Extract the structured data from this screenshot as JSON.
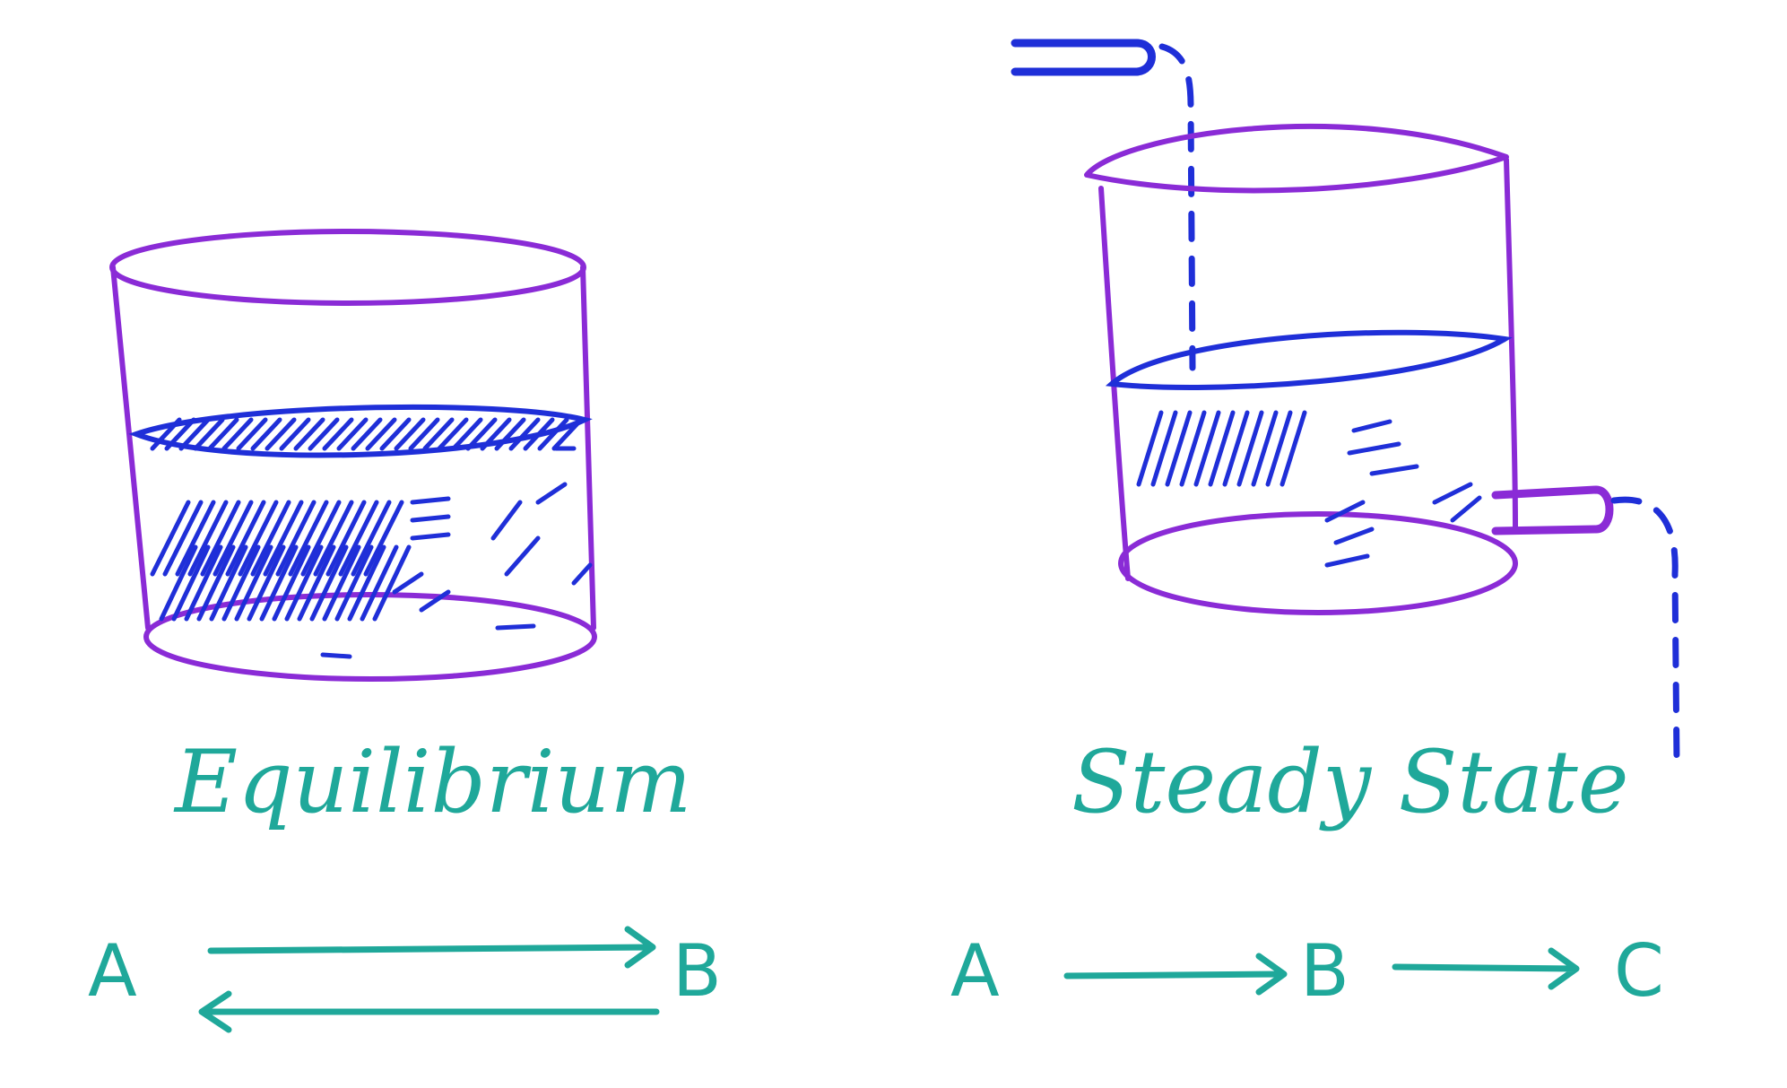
{
  "panels": [
    {
      "id": "equilibrium",
      "caption": "Equilibrium",
      "species": [
        "A",
        "B"
      ]
    },
    {
      "id": "steady-state",
      "caption": "Steady State",
      "species": [
        "A",
        "B",
        "C"
      ]
    }
  ],
  "colors": {
    "vessel": "#8a2bd6",
    "liquid": "#1f2fd8",
    "text": "#1fa89a"
  }
}
